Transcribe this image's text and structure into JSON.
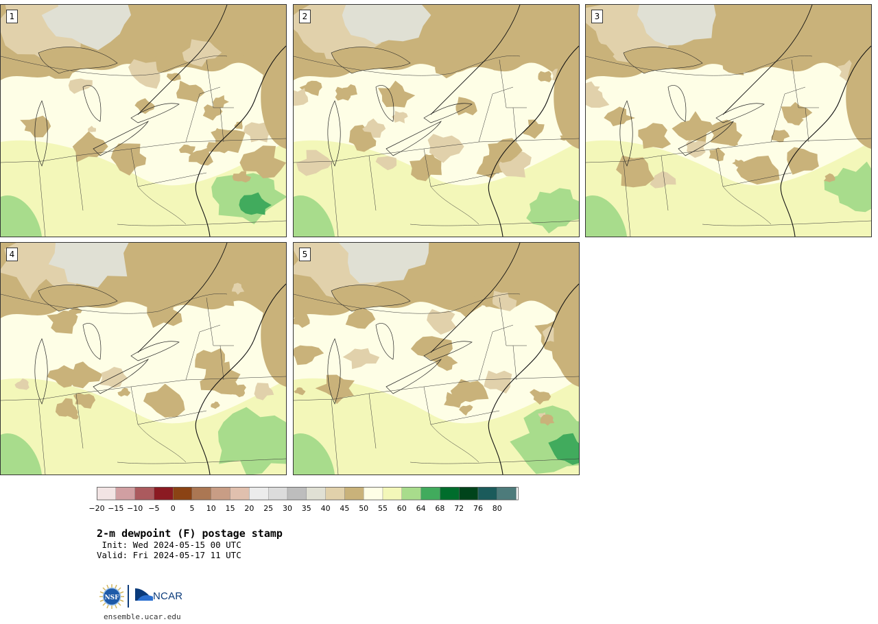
{
  "panels": [
    {
      "label": "1",
      "variant": 0
    },
    {
      "label": "2",
      "variant": 1
    },
    {
      "label": "3",
      "variant": 2
    },
    {
      "label": "4",
      "variant": 3
    },
    {
      "label": "5",
      "variant": 4
    }
  ],
  "colorbar": {
    "colors": [
      "#f2e4e4",
      "#d19fa2",
      "#ab5a5e",
      "#8b1a22",
      "#8b4314",
      "#ab7753",
      "#c89d85",
      "#e0c0ae",
      "#ececec",
      "#dcdcdc",
      "#bdbdbd",
      "#e0e0d4",
      "#e1d1ab",
      "#c9b27a",
      "#fefee6",
      "#f3f7b9",
      "#a8dc8c",
      "#41ab5d",
      "#006d2c",
      "#00441b",
      "#1b5b5b",
      "#4d7b7b"
    ],
    "ticks": [
      "−20",
      "−15",
      "−10",
      "−5",
      "0",
      "5",
      "10",
      "15",
      "20",
      "25",
      "30",
      "35",
      "40",
      "45",
      "50",
      "55",
      "60",
      "64",
      "68",
      "72",
      "76",
      "80"
    ]
  },
  "title": "2-m dewpoint (F) postage stamp",
  "init": " Init: Wed 2024-05-15 00 UTC",
  "valid": "Valid: Fri 2024-05-17 11 UTC",
  "logo": {
    "agency": "NSF",
    "org": "NCAR"
  },
  "site": "ensemble.ucar.edu"
}
